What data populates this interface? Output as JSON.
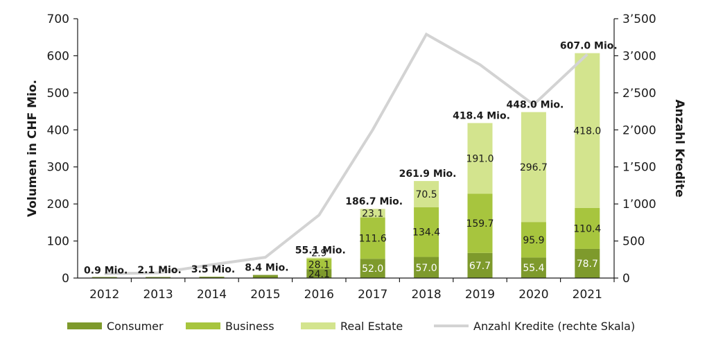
{
  "chart_data": {
    "type": "bar",
    "categories": [
      "2012",
      "2013",
      "2014",
      "2015",
      "2016",
      "2017",
      "2018",
      "2019",
      "2020",
      "2021"
    ],
    "series": [
      {
        "name": "Consumer",
        "color": "#7e9a2c",
        "values": [
          0.9,
          2.1,
          3.5,
          8.4,
          24.1,
          52.0,
          57.0,
          67.7,
          55.4,
          78.7
        ]
      },
      {
        "name": "Business",
        "color": "#a7c53e",
        "values": [
          0,
          0,
          0,
          0,
          28.1,
          111.6,
          134.4,
          159.7,
          95.9,
          110.4
        ]
      },
      {
        "name": "Real Estate",
        "color": "#d3e48e",
        "values": [
          0,
          0,
          0,
          0,
          2.9,
          23.1,
          70.5,
          191.0,
          296.7,
          418.0
        ]
      }
    ],
    "segment_labels": {
      "Consumer": [
        "",
        "",
        "",
        "",
        "24.1",
        "52.0",
        "57.0",
        "67.7",
        "55.4",
        "78.7"
      ],
      "Business": [
        "",
        "",
        "",
        "",
        "28.1",
        "111.6",
        "134.4",
        "159.7",
        "95.9",
        "110.4"
      ],
      "Real Estate": [
        "",
        "",
        "",
        "",
        "2.9",
        "23.1",
        "70.5",
        "191.0",
        "296.7",
        "418.0"
      ]
    },
    "totals": [
      "0.9 Mio.",
      "2.1 Mio.",
      "3.5 Mio.",
      "8.4 Mio.",
      "55.1 Mio.",
      "186.7 Mio.",
      "261.9 Mio.",
      "418.4 Mio.",
      "448.0 Mio.",
      "607.0 Mio."
    ],
    "line_series": {
      "name": "Anzahl Kredite (rechte Skala)",
      "color": "#d3d3d3",
      "values": [
        60,
        70,
        180,
        280,
        850,
        2000,
        3290,
        2880,
        2340,
        3020
      ]
    },
    "ylabel": "Volumen in CHF Mio.",
    "y2label": "Anzahl Kredite",
    "ylim": [
      0,
      700
    ],
    "y2lim": [
      0,
      3500
    ],
    "yticks": [
      "0",
      "100",
      "200",
      "300",
      "400",
      "500",
      "600",
      "700"
    ],
    "y2ticks": [
      "0",
      "500",
      "1’000",
      "1’500",
      "2’000",
      "2’500",
      "3’000",
      "3’500"
    ],
    "legend": {
      "position": "bottom"
    },
    "grid": false
  }
}
